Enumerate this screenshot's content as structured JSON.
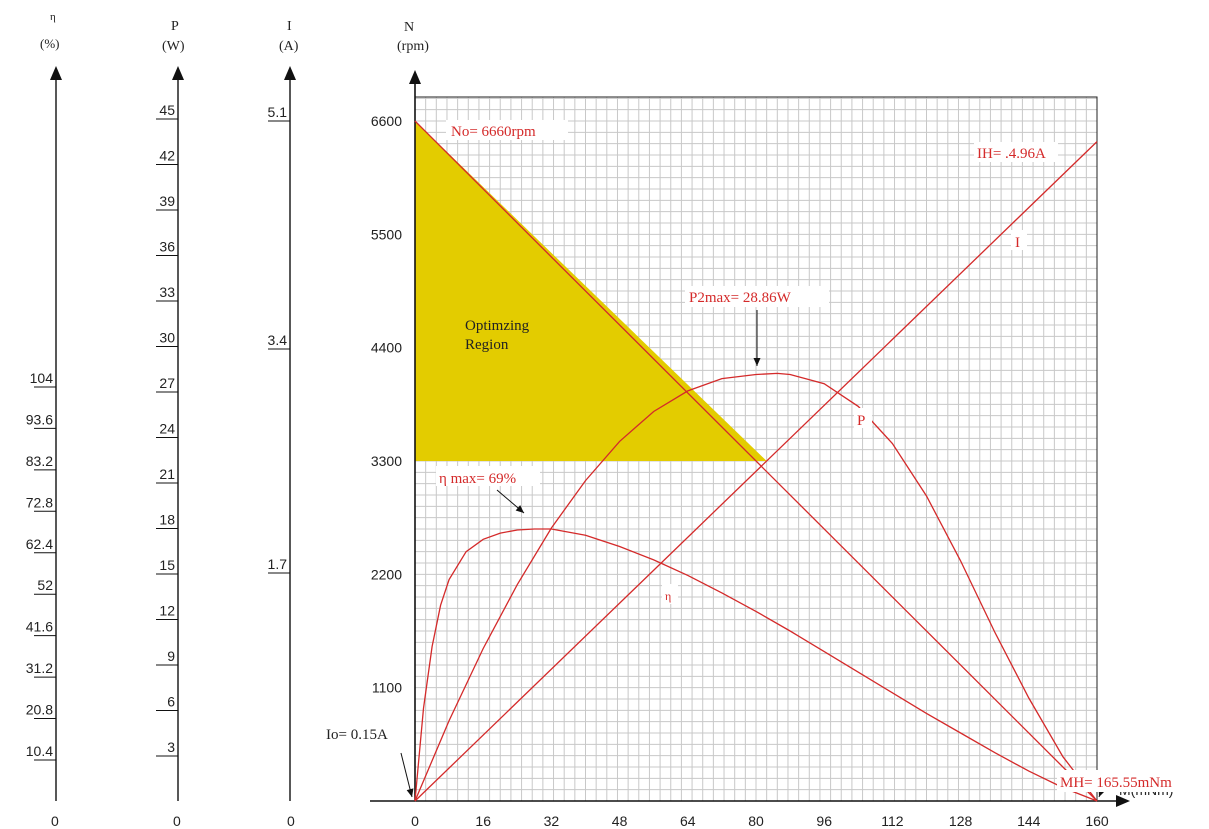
{
  "chart_data": {
    "type": "line",
    "title": "",
    "xlabel": "M(mNm)",
    "ylabel": "N",
    "ylabel_unit": "(rpm)",
    "xlim": [
      0,
      160
    ],
    "ylim": [
      0,
      6600
    ],
    "x_ticks": [
      "0",
      "16",
      "32",
      "48",
      "64",
      "80",
      "96",
      "112",
      "128",
      "144",
      "160"
    ],
    "y_ticks": [
      "1100",
      "2200",
      "3300",
      "4400",
      "5500",
      "6600"
    ],
    "grid": true,
    "auxiliary_axes": [
      {
        "name": "eta",
        "label": "η",
        "unit": "(%)",
        "ticks": [
          "10.4",
          "20.8",
          "31.2",
          "41.6",
          "52",
          "62.4",
          "72.8",
          "83.2",
          "93.6",
          "104"
        ],
        "zero": "0"
      },
      {
        "name": "power",
        "label": "P",
        "unit": "(W)",
        "ticks": [
          "3",
          "6",
          "9",
          "12",
          "15",
          "18",
          "21",
          "24",
          "27",
          "30",
          "33",
          "36",
          "39",
          "42",
          "45"
        ],
        "zero": "0"
      },
      {
        "name": "current",
        "label": "I",
        "unit": "(A)",
        "ticks": [
          "1.7",
          "3.4",
          "5.1"
        ],
        "zero": "0"
      }
    ],
    "series": [
      {
        "name": "N",
        "x": [
          0,
          160
        ],
        "y": [
          6600,
          0
        ]
      },
      {
        "name": "I",
        "x": [
          0,
          160
        ],
        "y": [
          0,
          6400
        ]
      },
      {
        "name": "P",
        "x": [
          0,
          8,
          16,
          24,
          32,
          40,
          48,
          56,
          64,
          72,
          80,
          85,
          88,
          96,
          104,
          112,
          120,
          128,
          136,
          144,
          152,
          160
        ],
        "y": [
          0,
          780,
          1480,
          2100,
          2650,
          3110,
          3490,
          3780,
          3980,
          4100,
          4140,
          4150,
          4140,
          4050,
          3830,
          3470,
          2960,
          2330,
          1640,
          1000,
          430,
          0
        ]
      },
      {
        "name": "η",
        "x": [
          0,
          2,
          4,
          6,
          8,
          12,
          16,
          20,
          24,
          28,
          32,
          40,
          48,
          56,
          64,
          72,
          80,
          88,
          96,
          104,
          112,
          120,
          128,
          136,
          144,
          152,
          160
        ],
        "y": [
          0,
          900,
          1500,
          1900,
          2150,
          2420,
          2540,
          2600,
          2630,
          2640,
          2640,
          2580,
          2470,
          2340,
          2190,
          2020,
          1840,
          1650,
          1450,
          1250,
          1050,
          850,
          660,
          470,
          290,
          130,
          0
        ]
      }
    ],
    "optimizing_region": {
      "label_line1": "Optimzing",
      "label_line2": "Region",
      "x": [
        0,
        0,
        82.5
      ],
      "y": [
        6600,
        3300,
        3300
      ]
    },
    "annotations": {
      "no": "No= 6660rpm",
      "ih": "IH= .4.96A",
      "i_label": "I",
      "p2max": "P2max= 28.86W",
      "p_label": "P",
      "eta_max": "η max= 69%",
      "eta_label": "η",
      "io": "Io= 0.15A",
      "mh": "MH= 165.55mNm"
    },
    "colors": {
      "curves": "#d42a2a",
      "region": "#e3cc00",
      "grid": "#c8c8c8"
    }
  }
}
